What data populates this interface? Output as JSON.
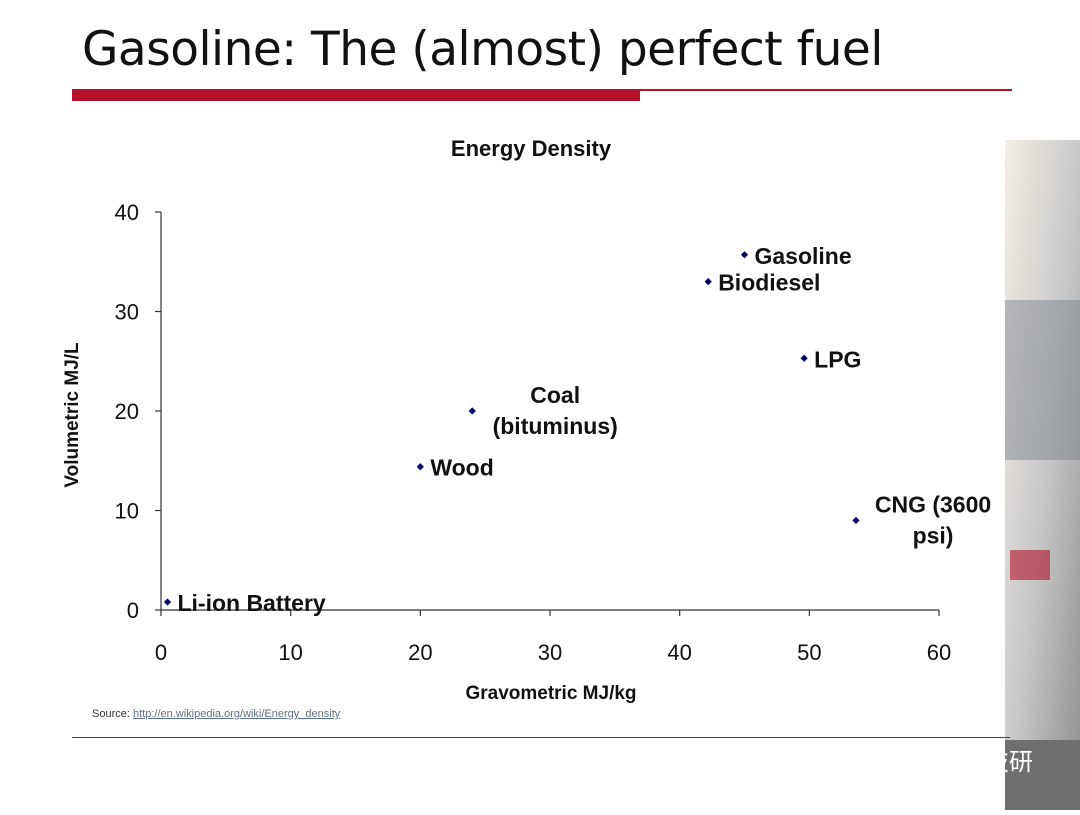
{
  "slide": {
    "title": "Gasoline: The (almost) perfect fuel",
    "source_label": "Source:",
    "source_link": "http://en.wikipedia.org/wiki/Energy_density",
    "watermark_text": "汽车技研"
  },
  "colors": {
    "accent": "#b3122a",
    "marker": "#000066",
    "axis": "#333333"
  },
  "chart_data": {
    "type": "scatter",
    "title": "Energy Density",
    "xlabel": "Gravometric MJ/kg",
    "ylabel": "Volumetric MJ/L",
    "xlim": [
      0,
      60
    ],
    "ylim": [
      0,
      40
    ],
    "xticks": [
      0,
      10,
      20,
      30,
      40,
      50,
      60
    ],
    "yticks": [
      0,
      10,
      20,
      30,
      40
    ],
    "grid": false,
    "points": [
      {
        "label": [
          "Li-ion Battery"
        ],
        "x": 0.5,
        "y": 0.8
      },
      {
        "label": [
          "Wood"
        ],
        "x": 20,
        "y": 14.4
      },
      {
        "label": [
          "Coal",
          "(bituminus)"
        ],
        "x": 24,
        "y": 20
      },
      {
        "label": [
          "Biodiesel"
        ],
        "x": 42.2,
        "y": 33
      },
      {
        "label": [
          "Gasoline"
        ],
        "x": 45,
        "y": 35.7
      },
      {
        "label": [
          "LPG"
        ],
        "x": 49.6,
        "y": 25.3
      },
      {
        "label": [
          "CNG (3600",
          "psi)"
        ],
        "x": 53.6,
        "y": 9
      }
    ]
  }
}
